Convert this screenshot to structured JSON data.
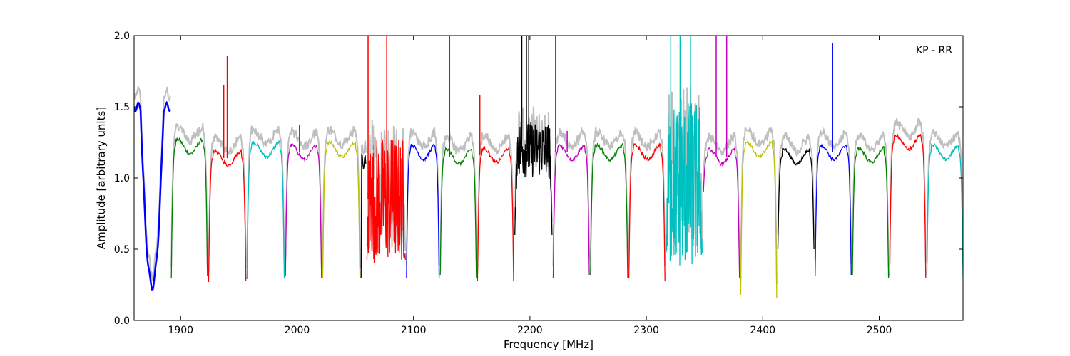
{
  "chart_data": {
    "type": "line",
    "title": "",
    "annotation": "KP - RR",
    "xlabel": "Frequency [MHz]",
    "ylabel": "Amplitude [arbitrary units]",
    "xlim": [
      1860,
      2572
    ],
    "ylim": [
      0.0,
      2.0
    ],
    "xticks": [
      1900,
      2000,
      2100,
      2200,
      2300,
      2400,
      2500
    ],
    "xtick_labels": [
      "1900",
      "2000",
      "2100",
      "2200",
      "2300",
      "2400",
      "2500"
    ],
    "yticks": [
      0.0,
      0.5,
      1.0,
      1.5,
      2.0
    ],
    "ytick_labels": [
      "0.0",
      "0.5",
      "1.0",
      "1.5",
      "2.0"
    ],
    "grid": false,
    "background_color": "#bfbfbf",
    "band_colors": [
      "#0000ff",
      "#008000",
      "#ff0000",
      "#00bfbf",
      "#bf00bf",
      "#bfbf00",
      "#000000"
    ],
    "bands": [
      {
        "x0": 1860,
        "x1": 1891,
        "color": "#0000ff",
        "shape": "dip",
        "min": 0.24,
        "peaks": [
          1.48,
          1.5
        ]
      },
      {
        "x0": 1892,
        "x1": 1923,
        "color": "#008000",
        "level": 1.22,
        "edge_low": 0.3,
        "edge_high": 0.31
      },
      {
        "x0": 1924,
        "x1": 1956,
        "color": "#ff0000",
        "level": 1.14,
        "edge_low": 0.27,
        "edge_high": 0.28,
        "spikes": [
          [
            1937,
            1.65
          ],
          [
            1940,
            1.86
          ]
        ]
      },
      {
        "x0": 1957,
        "x1": 1989,
        "color": "#00bfbf",
        "level": 1.2,
        "edge_low": 0.29,
        "edge_high": 0.3
      },
      {
        "x0": 1990,
        "x1": 2021,
        "color": "#bf00bf",
        "level": 1.18,
        "edge_low": 0.31,
        "edge_high": 0.3,
        "spikes": [
          [
            2002,
            1.37
          ]
        ]
      },
      {
        "x0": 2022,
        "x1": 2054,
        "color": "#bfbf00",
        "level": 1.2,
        "edge_low": 0.3,
        "edge_high": 0.3
      },
      {
        "x0": 2055,
        "x1": 2059,
        "color": "#000000",
        "level": 1.12,
        "edge_low": 0.3,
        "edge_high": 1.1
      },
      {
        "x0": 2060,
        "x1": 2093,
        "color": "#ff0000",
        "noisy": true,
        "level": 0.85,
        "noise_amp": 0.45,
        "spikes": [
          [
            2061,
            2.0
          ],
          [
            2077,
            2.0
          ]
        ]
      },
      {
        "x0": 2094,
        "x1": 2122,
        "color": "#0000ff",
        "level": 1.18,
        "edge_low": 0.3,
        "edge_high": 0.3
      },
      {
        "x0": 2123,
        "x1": 2154,
        "color": "#008000",
        "level": 1.15,
        "edge_low": 0.32,
        "edge_high": 0.3,
        "spikes": [
          [
            2131,
            2.0
          ]
        ]
      },
      {
        "x0": 2155,
        "x1": 2186,
        "color": "#ff0000",
        "level": 1.16,
        "edge_low": 0.28,
        "edge_high": 0.28,
        "spikes": [
          [
            2157,
            1.58
          ]
        ]
      },
      {
        "x0": 2187,
        "x1": 2219,
        "color": "#000000",
        "noisy": true,
        "level": 1.2,
        "noise_amp": 0.2,
        "spikes": [
          [
            2193,
            2.0
          ],
          [
            2197,
            2.0
          ],
          [
            2199,
            2.0
          ]
        ]
      },
      {
        "x0": 2220,
        "x1": 2251,
        "color": "#bf00bf",
        "level": 1.18,
        "edge_low": 0.3,
        "edge_high": 0.32,
        "spikes": [
          [
            2222,
            2.0
          ],
          [
            2232,
            1.33
          ]
        ]
      },
      {
        "x0": 2252,
        "x1": 2284,
        "color": "#008000",
        "level": 1.18,
        "edge_low": 0.32,
        "edge_high": 0.3
      },
      {
        "x0": 2285,
        "x1": 2316,
        "color": "#ff0000",
        "level": 1.18,
        "edge_low": 0.3,
        "edge_high": 0.28
      },
      {
        "x0": 2317,
        "x1": 2348,
        "color": "#00bfbf",
        "noisy": true,
        "level": 0.95,
        "noise_amp": 0.6,
        "spikes": [
          [
            2321,
            2.0
          ],
          [
            2329,
            2.0
          ],
          [
            2338,
            2.0
          ]
        ]
      },
      {
        "x0": 2349,
        "x1": 2380,
        "color": "#bf00bf",
        "level": 1.15,
        "edge_low": 0.9,
        "edge_high": 0.3,
        "spikes": [
          [
            2360,
            2.0
          ],
          [
            2369,
            2.0
          ]
        ]
      },
      {
        "x0": 2381,
        "x1": 2412,
        "color": "#bfbf00",
        "level": 1.2,
        "edge_low": 0.18,
        "edge_high": 0.16
      },
      {
        "x0": 2413,
        "x1": 2444,
        "color": "#000000",
        "level": 1.15,
        "edge_low": 0.5,
        "edge_high": 0.5
      },
      {
        "x0": 2445,
        "x1": 2476,
        "color": "#0000ff",
        "level": 1.18,
        "edge_low": 0.31,
        "edge_high": 0.32,
        "spikes": [
          [
            2460,
            1.95
          ]
        ]
      },
      {
        "x0": 2477,
        "x1": 2508,
        "color": "#008000",
        "level": 1.16,
        "edge_low": 0.32,
        "edge_high": 0.3
      },
      {
        "x0": 2509,
        "x1": 2540,
        "color": "#ff0000",
        "level": 1.25,
        "edge_low": 0.31,
        "edge_high": 0.3
      },
      {
        "x0": 2541,
        "x1": 2572,
        "color": "#00bfbf",
        "level": 1.18,
        "edge_low": 0.32,
        "edge_high": 0.3
      }
    ]
  }
}
